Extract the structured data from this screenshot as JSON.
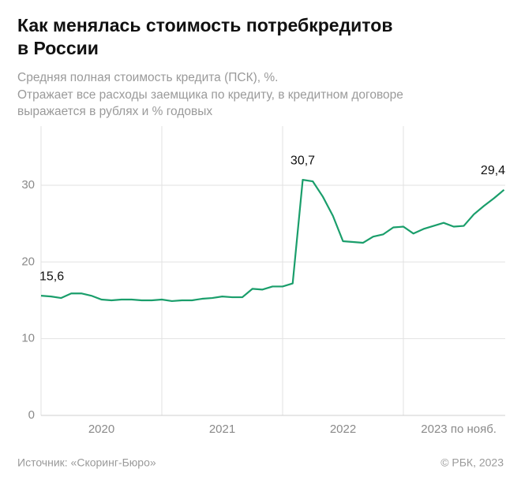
{
  "chart_data": {
    "type": "line",
    "title": [
      "Как менялась стоимость потребкредитов",
      "в России"
    ],
    "subtitle": [
      "Средняя полная стоимость кредита (ПСК), %.",
      "Отражает все расходы заемщика по кредиту, в кредитном договоре",
      "выражается в рублях и % годовых"
    ],
    "x_labels": [
      "2020",
      "2021",
      "2022",
      "2023 по нояб."
    ],
    "series": [
      {
        "color": "#1a9e6b",
        "values": [
          15.6,
          15.5,
          15.3,
          15.9,
          15.9,
          15.6,
          15.1,
          15.0,
          15.1,
          15.1,
          15.0,
          15.0,
          15.1,
          14.9,
          15.0,
          15.0,
          15.2,
          15.3,
          15.5,
          15.4,
          15.4,
          16.5,
          16.4,
          16.8,
          16.8,
          17.2,
          30.7,
          30.5,
          28.5,
          26.0,
          22.7,
          22.6,
          22.5,
          23.3,
          23.6,
          24.5,
          24.6,
          23.7,
          24.3,
          24.7,
          25.1,
          24.6,
          24.7,
          26.2,
          27.3,
          28.3,
          29.4
        ],
        "value_labels": [
          "15,6",
          null,
          null,
          null,
          null,
          null,
          null,
          null,
          null,
          null,
          null,
          null,
          null,
          null,
          null,
          null,
          null,
          null,
          null,
          null,
          null,
          null,
          null,
          null,
          null,
          null,
          "30,7",
          null,
          null,
          null,
          null,
          null,
          null,
          null,
          null,
          null,
          null,
          null,
          null,
          null,
          null,
          null,
          null,
          null,
          null,
          null,
          "29,4"
        ]
      }
    ],
    "ylim": [
      0,
      37.7
    ],
    "yticks": [
      0,
      10,
      20,
      30
    ],
    "grid": true,
    "source": "Источник: «Скоринг-Бюро»",
    "copyright": "© РБК, 2023"
  }
}
